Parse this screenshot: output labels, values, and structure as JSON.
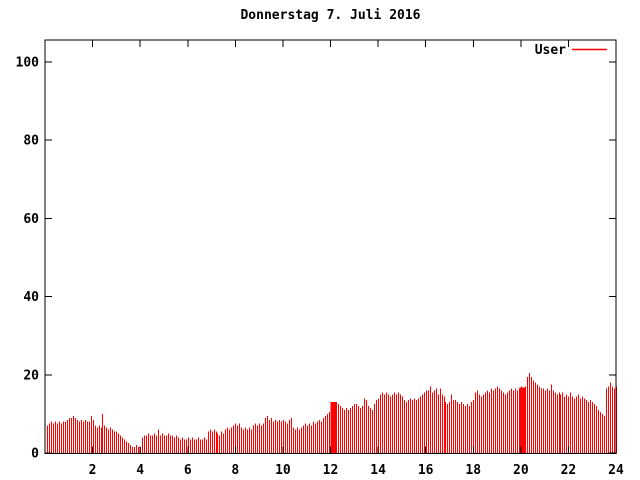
{
  "title": "Donnerstag 7. Juli 2016",
  "colors": {
    "series": "#ff0000",
    "axis": "#000000",
    "background": "#ffffff"
  },
  "chart_data": {
    "type": "bar",
    "title": "Donnerstag 7. Juli 2016",
    "xlabel": "",
    "ylabel": "",
    "xlim": [
      0,
      24
    ],
    "ylim": [
      0,
      105
    ],
    "x_ticks": [
      2,
      4,
      6,
      8,
      10,
      12,
      14,
      16,
      18,
      20,
      22,
      24
    ],
    "y_ticks": [
      0,
      20,
      40,
      60,
      80,
      100
    ],
    "grid": false,
    "legend_position": "top-right-inside",
    "sample_interval_minutes": 5,
    "series": [
      {
        "name": "User",
        "color": "#ff0000",
        "values": [
          7,
          7.5,
          8,
          7.5,
          8,
          7.5,
          8,
          7.5,
          8,
          8,
          8.5,
          9,
          9,
          9.5,
          9,
          8.5,
          8,
          8.5,
          8,
          8.5,
          8,
          8,
          9.5,
          8.5,
          7,
          6.5,
          7,
          6.5,
          10,
          7,
          6.5,
          6,
          6.5,
          6,
          5.5,
          5.5,
          5,
          4.5,
          4,
          3.5,
          3,
          2.5,
          2,
          1.5,
          1.5,
          2,
          1.5,
          1.5,
          4,
          4.5,
          4.5,
          5,
          4.5,
          4.5,
          5,
          4.5,
          6,
          4.5,
          5,
          4.5,
          4.5,
          5,
          4.5,
          4.5,
          4,
          4.5,
          4,
          3.5,
          4,
          3.5,
          3.5,
          4,
          3.5,
          4,
          3.5,
          3.5,
          4,
          3.5,
          3.5,
          4,
          3.5,
          5.5,
          6,
          5.5,
          6,
          5.5,
          5,
          4.5,
          5.5,
          5,
          6,
          6.5,
          6,
          6.5,
          7,
          7.5,
          7,
          7.5,
          6.5,
          6,
          6.5,
          6,
          6.5,
          6,
          7,
          7.5,
          7,
          7.5,
          7,
          7.5,
          9,
          9.5,
          8.5,
          9,
          8,
          8.5,
          8,
          8.5,
          8,
          8.5,
          8,
          7.5,
          8.5,
          9,
          6.5,
          6,
          6.5,
          6,
          6.5,
          7,
          7.5,
          7,
          7.5,
          7,
          8,
          7.5,
          8,
          8.5,
          8,
          9,
          9.5,
          10,
          10.5,
          11,
          12,
          12.5,
          13,
          12.5,
          12,
          11.5,
          11,
          11.5,
          11,
          11.5,
          12,
          12.5,
          12.5,
          12,
          11.5,
          12,
          14,
          13.5,
          12,
          11.5,
          11,
          12.5,
          13.5,
          14,
          15,
          15.5,
          15,
          15.5,
          15,
          14.5,
          15,
          15.5,
          15,
          15.5,
          15,
          14.5,
          13.5,
          13,
          13.5,
          14,
          13.5,
          14,
          13.5,
          14,
          14.5,
          15,
          15.5,
          16,
          16,
          17,
          15.5,
          16,
          16.5,
          15,
          16.5,
          15,
          14.5,
          13,
          12.5,
          13,
          15,
          13.5,
          13.5,
          13,
          12.5,
          13,
          12.5,
          12,
          12.5,
          12,
          13,
          13.5,
          15.5,
          16,
          15,
          14.5,
          15,
          15.5,
          16,
          15.5,
          16.5,
          16,
          16.5,
          17,
          16.5,
          16,
          15.5,
          15,
          15.5,
          16,
          16.5,
          16,
          16.5,
          16,
          16.5,
          17,
          16.5,
          17,
          19.5,
          20.5,
          19.5,
          18.5,
          18,
          17.5,
          17,
          16.5,
          16.5,
          16,
          16.5,
          16,
          17.5,
          16,
          15.5,
          15,
          15.5,
          15,
          15.5,
          14.5,
          15,
          14.5,
          15.5,
          14.5,
          14,
          14.5,
          15,
          14,
          14.5,
          14,
          13.5,
          13,
          13.5,
          13,
          12.5,
          12,
          11,
          10.5,
          10,
          9.5,
          16.5,
          17,
          18,
          17,
          16.5,
          17
        ]
      }
    ],
    "solid_blocks": [
      {
        "start_hour": 12.0,
        "end_hour": 12.28,
        "value": 13
      },
      {
        "start_hour": 19.95,
        "end_hour": 20.2,
        "value": 16.8
      }
    ]
  }
}
